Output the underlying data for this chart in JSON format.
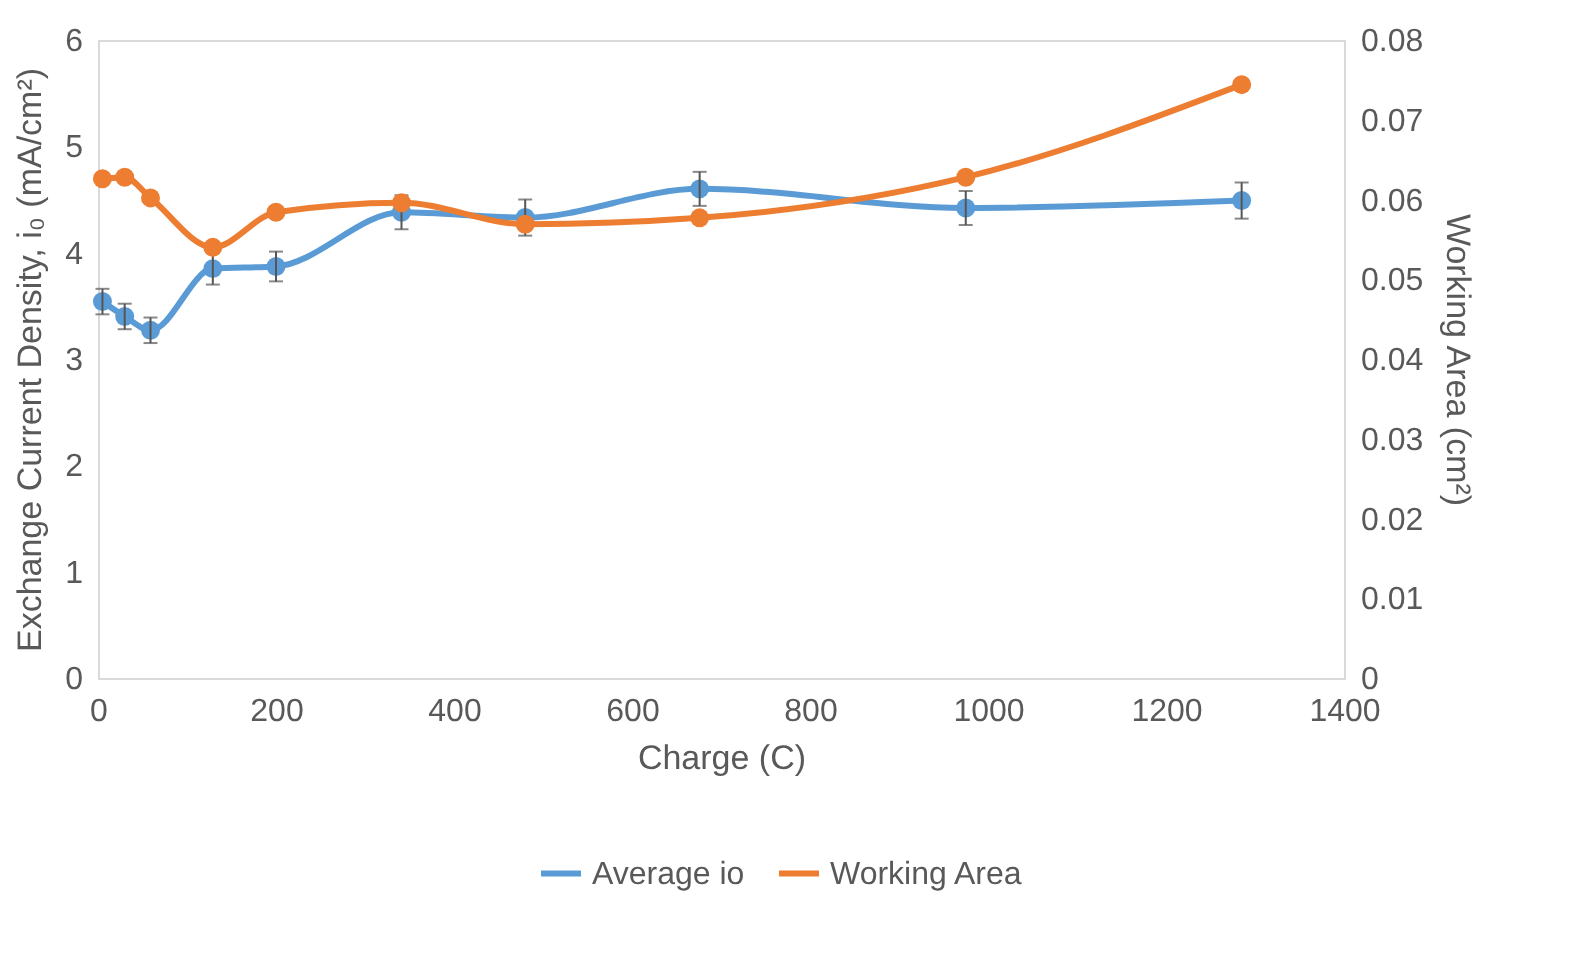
{
  "chart_data": {
    "type": "line",
    "xlabel": "Charge (C)",
    "ylabel": "Exchange Current Density, i₀ (mA/cm²)",
    "y2label": "Working Area (cm²)",
    "x": [
      5,
      30,
      59,
      129,
      200,
      341,
      480,
      676,
      975,
      1285
    ],
    "series": [
      {
        "name": "Average io",
        "color": "#5b9bd5",
        "values": [
          3.54,
          3.4,
          3.27,
          3.85,
          3.87,
          4.38,
          4.33,
          4.6,
          4.42,
          4.49
        ],
        "errors": [
          0.12,
          0.12,
          0.12,
          0.15,
          0.14,
          0.16,
          0.17,
          0.16,
          0.16,
          0.17
        ]
      },
      {
        "name": "Working Area",
        "color": "#ed7d31",
        "axis": "y2",
        "values": [
          0.0626,
          0.0628,
          0.0602,
          0.054,
          0.0584,
          0.0596,
          0.0569,
          0.0577,
          0.0628,
          0.0744
        ]
      }
    ],
    "xlim": [
      0,
      1400
    ],
    "xticks": [
      0,
      200,
      400,
      600,
      800,
      1000,
      1200,
      1400
    ],
    "ylim": [
      0,
      6
    ],
    "yticks": [
      0,
      1,
      2,
      3,
      4,
      5,
      6
    ],
    "y2lim": [
      0,
      0.08
    ],
    "y2ticks": [
      0,
      0.01,
      0.02,
      0.03,
      0.04,
      0.05,
      0.06,
      0.07,
      0.08
    ],
    "marker": "circle",
    "line_style": "solid",
    "grid": false,
    "legend": "bottom"
  }
}
